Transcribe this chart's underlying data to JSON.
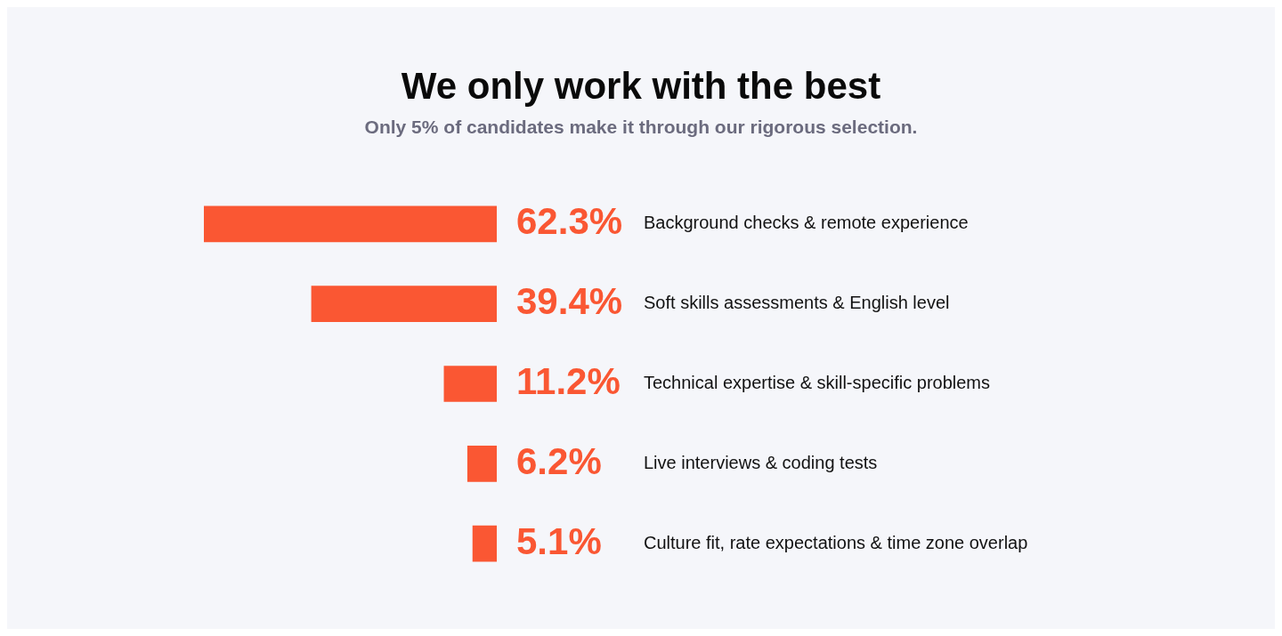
{
  "chart_data": {
    "type": "bar",
    "orientation": "horizontal",
    "title": "We only work with the best",
    "subtitle": "Only 5% of candidates make it through our rigorous selection.",
    "categories": [
      "Background checks & remote experience",
      "Soft skills assessments & English level",
      "Technical expertise & skill-specific problems",
      "Live interviews & coding tests",
      "Culture fit, rate expectations & time zone overlap"
    ],
    "values": [
      62.3,
      39.4,
      11.2,
      6.2,
      5.1
    ],
    "value_labels": [
      "62.3%",
      "39.4%",
      "11.2%",
      "6.2%",
      "5.1%"
    ],
    "color": "#fa5733"
  }
}
